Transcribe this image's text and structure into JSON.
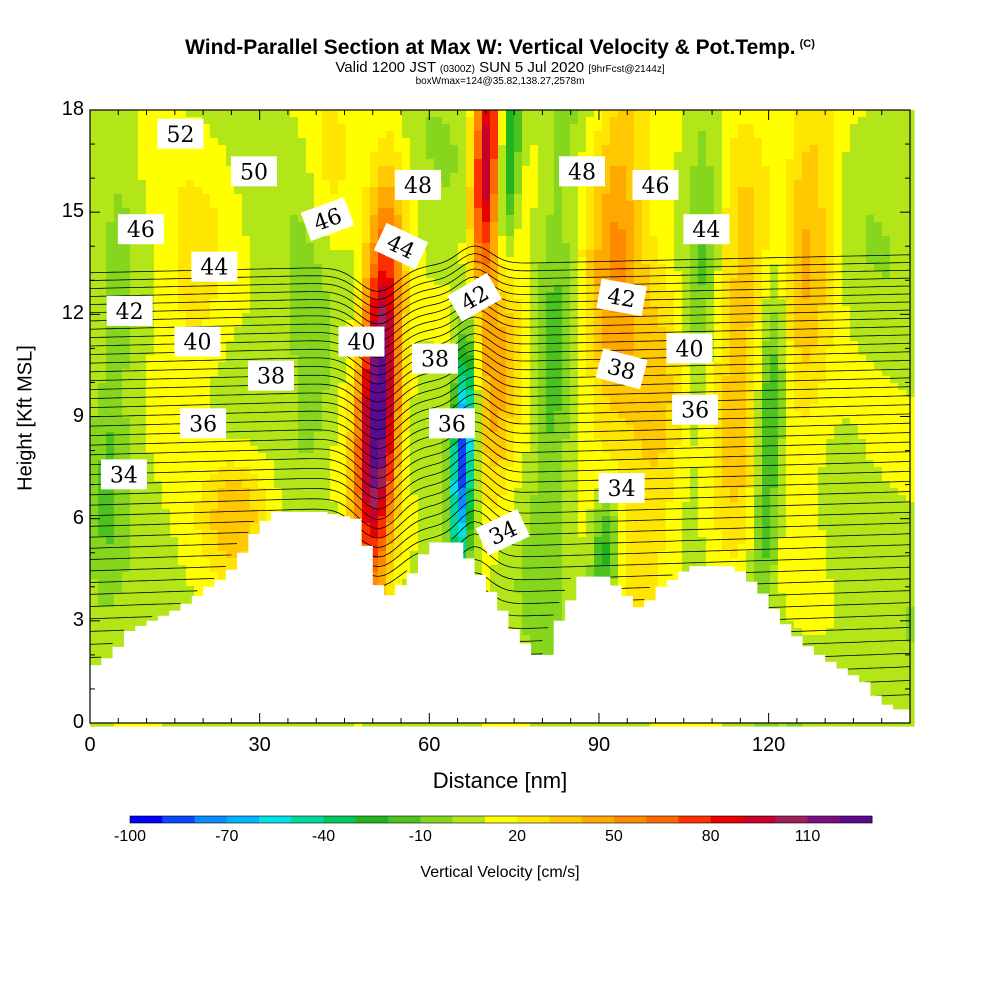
{
  "chart_data": {
    "type": "heatmap",
    "title": "Wind-Parallel Section at Max W: Vertical Velocity & Pot.Temp.",
    "title_mark": "(C)",
    "subtitle_main": "Valid 1200 JST",
    "subtitle_utc": "(0300Z)",
    "subtitle_date": "SUN 5 Jul 2020",
    "subtitle_fcst": "[9hrFcst@2144z]",
    "info": "boxWmax=124@35.82,138.27,2578m",
    "xlabel": "Distance [nm]",
    "ylabel": "Height [Kft MSL]",
    "xlim": [
      0,
      145
    ],
    "ylim": [
      0,
      18
    ],
    "xticks": [
      0,
      30,
      60,
      90,
      120
    ],
    "yticks": [
      0,
      3,
      6,
      9,
      12,
      15,
      18
    ],
    "colorbar": {
      "label": "Vertical Velocity [cm/s]",
      "range": [
        -100,
        130
      ],
      "step": 10,
      "tick_labels": [
        "-100",
        "-70",
        "-40",
        "-10",
        "20",
        "50",
        "80",
        "110"
      ],
      "colors": [
        "#0000ff",
        "#0a45ff",
        "#0a8bff",
        "#00b4ff",
        "#00e0e6",
        "#00d89a",
        "#00c85a",
        "#22b41e",
        "#4cc21e",
        "#86d61e",
        "#b2e619",
        "#ffff00",
        "#ffe600",
        "#ffc800",
        "#ffa800",
        "#ff8a00",
        "#ff6a00",
        "#ff3000",
        "#e80000",
        "#c80028",
        "#a0205a",
        "#78107e",
        "#5a0a8c"
      ]
    },
    "terrain": [
      [
        0,
        1.7
      ],
      [
        3,
        2
      ],
      [
        6,
        2.7
      ],
      [
        10,
        3
      ],
      [
        14,
        3.3
      ],
      [
        17,
        3.6
      ],
      [
        20,
        4
      ],
      [
        23,
        4.3
      ],
      [
        25,
        4.7
      ],
      [
        27,
        5.3
      ],
      [
        29,
        5.8
      ],
      [
        32,
        6.2
      ],
      [
        40,
        6.2
      ],
      [
        46,
        6.0
      ],
      [
        48,
        5.2
      ],
      [
        49,
        4.5
      ],
      [
        51,
        3.6
      ],
      [
        55,
        4.2
      ],
      [
        57,
        4.6
      ],
      [
        59,
        5.3
      ],
      [
        64,
        5.3
      ],
      [
        67,
        4.6
      ],
      [
        71,
        3.6
      ],
      [
        73,
        3.0
      ],
      [
        75,
        2.5
      ],
      [
        78,
        2.0
      ],
      [
        80,
        2.0
      ],
      [
        82,
        3.0
      ],
      [
        84,
        3.6
      ],
      [
        86,
        4.3
      ],
      [
        90,
        4.3
      ],
      [
        93,
        3.9
      ],
      [
        96,
        3.4
      ],
      [
        98,
        3.6
      ],
      [
        100,
        4.0
      ],
      [
        103,
        4.3
      ],
      [
        105,
        4.6
      ],
      [
        113,
        4.6
      ],
      [
        115,
        4.3
      ],
      [
        117,
        4.0
      ],
      [
        119,
        3.6
      ],
      [
        121,
        3.1
      ],
      [
        123,
        2.7
      ],
      [
        125,
        2.4
      ],
      [
        127,
        2.1
      ],
      [
        130,
        1.8
      ],
      [
        133,
        1.5
      ],
      [
        136,
        1.2
      ],
      [
        139,
        0.6
      ],
      [
        142,
        0.4
      ],
      [
        145,
        0.4
      ]
    ],
    "updrafts": [
      {
        "x": 51,
        "y": 9.5,
        "peak": 124,
        "width_nm": 3.5,
        "depth_kft": 5.5
      },
      {
        "x": 70,
        "y": 16.5,
        "peak": 90,
        "width_nm": 2.5,
        "depth_kft": 3.5
      },
      {
        "x": 72,
        "y": 11.0,
        "peak": 35,
        "width_nm": 4,
        "depth_kft": 6
      },
      {
        "x": 93,
        "y": 14.0,
        "peak": 40,
        "width_nm": 5,
        "depth_kft": 7
      },
      {
        "x": 100,
        "y": 8.5,
        "peak": 30,
        "width_nm": 6,
        "depth_kft": 5
      },
      {
        "x": 115,
        "y": 11.0,
        "peak": 35,
        "width_nm": 5,
        "depth_kft": 6
      },
      {
        "x": 127,
        "y": 14.0,
        "peak": 35,
        "width_nm": 5,
        "depth_kft": 6
      },
      {
        "x": 26,
        "y": 6.2,
        "peak": 30,
        "width_nm": 6,
        "depth_kft": 1.8
      },
      {
        "x": 42,
        "y": 14.5,
        "peak": 25,
        "width_nm": 4,
        "depth_kft": 4
      },
      {
        "x": 18,
        "y": 12.0,
        "peak": 20,
        "width_nm": 7,
        "depth_kft": 4
      }
    ],
    "downdrafts": [
      {
        "x": 66,
        "y": 8.0,
        "peak": -95,
        "width_nm": 2.0,
        "depth_kft": 3.5
      },
      {
        "x": 74,
        "y": 16.5,
        "peak": -55,
        "width_nm": 2.0,
        "depth_kft": 3
      },
      {
        "x": 40,
        "y": 11.5,
        "peak": -25,
        "width_nm": 4,
        "depth_kft": 4
      },
      {
        "x": 82,
        "y": 11.0,
        "peak": -20,
        "width_nm": 3,
        "depth_kft": 7
      },
      {
        "x": 108,
        "y": 14.0,
        "peak": -20,
        "width_nm": 3,
        "depth_kft": 6
      },
      {
        "x": 120,
        "y": 8.0,
        "peak": -35,
        "width_nm": 2.5,
        "depth_kft": 6
      },
      {
        "x": 91,
        "y": 5.0,
        "peak": -40,
        "width_nm": 2.5,
        "depth_kft": 1.8
      },
      {
        "x": 4,
        "y": 9.0,
        "peak": -15,
        "width_nm": 3,
        "depth_kft": 7
      }
    ],
    "isentropes": {
      "min": 32,
      "max": 54,
      "label_text": [
        "34",
        "36",
        "38",
        "40",
        "42",
        "44",
        "46",
        "48",
        "50",
        "52"
      ],
      "labels": [
        {
          "t": "52",
          "x": 16,
          "y": 17.3,
          "rot": 0
        },
        {
          "t": "50",
          "x": 29,
          "y": 16.2,
          "rot": 0
        },
        {
          "t": "48",
          "x": 58,
          "y": 15.8,
          "rot": 0
        },
        {
          "t": "48",
          "x": 87,
          "y": 16.2,
          "rot": 0
        },
        {
          "t": "46",
          "x": 100,
          "y": 15.8,
          "rot": 0
        },
        {
          "t": "46",
          "x": 42,
          "y": 14.8,
          "rot": -20
        },
        {
          "t": "46",
          "x": 9,
          "y": 14.5,
          "rot": 0
        },
        {
          "t": "44",
          "x": 55,
          "y": 14.0,
          "rot": 25
        },
        {
          "t": "44",
          "x": 22,
          "y": 13.4,
          "rot": 0
        },
        {
          "t": "44",
          "x": 109,
          "y": 14.5,
          "rot": 0
        },
        {
          "t": "42",
          "x": 68,
          "y": 12.5,
          "rot": -30
        },
        {
          "t": "42",
          "x": 7,
          "y": 12.1,
          "rot": 0
        },
        {
          "t": "42",
          "x": 94,
          "y": 12.5,
          "rot": 10
        },
        {
          "t": "40",
          "x": 19,
          "y": 11.2,
          "rot": 0
        },
        {
          "t": "40",
          "x": 48,
          "y": 11.2,
          "rot": 0
        },
        {
          "t": "40",
          "x": 106,
          "y": 11.0,
          "rot": 0
        },
        {
          "t": "38",
          "x": 32,
          "y": 10.2,
          "rot": 0
        },
        {
          "t": "38",
          "x": 61,
          "y": 10.7,
          "rot": 0
        },
        {
          "t": "38",
          "x": 94,
          "y": 10.4,
          "rot": 15
        },
        {
          "t": "36",
          "x": 20,
          "y": 8.8,
          "rot": 0
        },
        {
          "t": "36",
          "x": 64,
          "y": 8.8,
          "rot": 0
        },
        {
          "t": "36",
          "x": 107,
          "y": 9.2,
          "rot": 0
        },
        {
          "t": "34",
          "x": 6,
          "y": 7.3,
          "rot": 0
        },
        {
          "t": "34",
          "x": 94,
          "y": 6.9,
          "rot": 0
        },
        {
          "t": "34",
          "x": 73,
          "y": 5.6,
          "rot": -25
        }
      ]
    }
  }
}
